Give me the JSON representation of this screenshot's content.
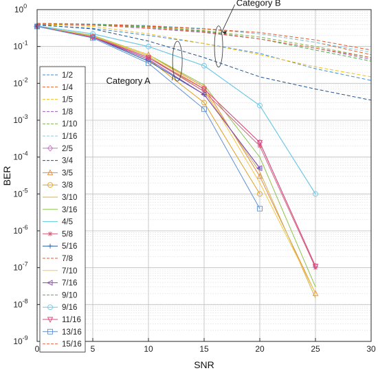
{
  "chart_data": {
    "type": "line",
    "xlabel": "SNR",
    "ylabel": "BER",
    "xlim": [
      0,
      30
    ],
    "ylim": [
      1e-09,
      1
    ],
    "yscale": "log",
    "grid": true,
    "legend_position": "left",
    "x_ticks": [
      "0",
      "5",
      "10",
      "15",
      "20",
      "25",
      "30"
    ],
    "y_tick_base": "10",
    "y_tick_exponents": [
      "-9",
      "-8",
      "-7",
      "-6",
      "-5",
      "-4",
      "-3",
      "-2",
      "-1",
      "0"
    ],
    "annotations": [
      {
        "text": "Category A",
        "x": 12.5,
        "y": 0.012
      },
      {
        "text": "Category B",
        "x": 18.5,
        "y": 0.32
      }
    ],
    "series": [
      {
        "name": "1/2",
        "color": "#3b8ed8",
        "dash": true,
        "marker": "none",
        "x": [
          0,
          5,
          10,
          15,
          20,
          25,
          30
        ],
        "y": [
          0.38,
          0.31,
          0.2,
          0.12,
          0.065,
          0.025,
          0.012
        ]
      },
      {
        "name": "1/4",
        "color": "#e06020",
        "dash": true,
        "marker": "none",
        "x": [
          0,
          5,
          10,
          15,
          20,
          25,
          30
        ],
        "y": [
          0.42,
          0.4,
          0.35,
          0.3,
          0.22,
          0.13,
          0.06
        ]
      },
      {
        "name": "1/5",
        "color": "#f0c020",
        "dash": true,
        "marker": "none",
        "x": [
          0,
          5,
          10,
          15,
          20,
          25,
          30
        ],
        "y": [
          0.4,
          0.35,
          0.22,
          0.12,
          0.06,
          0.028,
          0.015
        ]
      },
      {
        "name": "1/8",
        "color": "#9b59b6",
        "dash": true,
        "marker": "none",
        "x": [
          0,
          5,
          10,
          15,
          20,
          25,
          30
        ],
        "y": [
          0.41,
          0.38,
          0.31,
          0.24,
          0.16,
          0.09,
          0.045
        ]
      },
      {
        "name": "1/10",
        "color": "#7cb342",
        "dash": true,
        "marker": "none",
        "x": [
          0,
          5,
          10,
          15,
          20,
          25,
          30
        ],
        "y": [
          0.42,
          0.39,
          0.34,
          0.27,
          0.18,
          0.1,
          0.05
        ]
      },
      {
        "name": "1/16",
        "color": "#7fd0e8",
        "dash": true,
        "marker": "none",
        "x": [
          0,
          5,
          10,
          15,
          20,
          25,
          30
        ],
        "y": [
          0.43,
          0.41,
          0.37,
          0.31,
          0.22,
          0.13,
          0.07
        ]
      },
      {
        "name": "2/5",
        "color": "#c774c7",
        "dash": false,
        "marker": "diamond",
        "x": [
          0,
          5,
          10,
          15,
          20,
          25
        ],
        "y": [
          0.35,
          0.18,
          0.05,
          0.007,
          0.00025,
          1.1e-07
        ]
      },
      {
        "name": "3/4",
        "color": "#1a4e8c",
        "dash": true,
        "marker": "none",
        "x": [
          0,
          5,
          10,
          15,
          20,
          25,
          30
        ],
        "y": [
          0.39,
          0.3,
          0.14,
          0.05,
          0.015,
          0.007,
          0.0035
        ]
      },
      {
        "name": "3/5",
        "color": "#e8883a",
        "dash": false,
        "marker": "triangle",
        "x": [
          0,
          5,
          10,
          15,
          20,
          25
        ],
        "y": [
          0.35,
          0.19,
          0.06,
          0.008,
          3e-05,
          2e-08
        ]
      },
      {
        "name": "3/8",
        "color": "#e0a020",
        "dash": false,
        "marker": "circle",
        "x": [
          0,
          5,
          10,
          15,
          20
        ],
        "y": [
          0.35,
          0.18,
          0.045,
          0.003,
          1e-05
        ]
      },
      {
        "name": "3/10",
        "color": "#c9b458",
        "dash": false,
        "marker": "none",
        "x": [
          0,
          5,
          10,
          15,
          20,
          25
        ],
        "y": [
          0.35,
          0.19,
          0.055,
          0.006,
          4e-05,
          1.5e-08
        ]
      },
      {
        "name": "3/16",
        "color": "#8bc34a",
        "dash": false,
        "marker": "none",
        "x": [
          0,
          5,
          10,
          15,
          20,
          25
        ],
        "y": [
          0.35,
          0.2,
          0.06,
          0.009,
          0.0001,
          3e-08
        ]
      },
      {
        "name": "4/5",
        "color": "#5ac8d8",
        "dash": false,
        "marker": "none",
        "x": [
          0,
          5,
          10,
          15,
          20,
          25
        ],
        "y": [
          0.36,
          0.22,
          0.1,
          0.03,
          0.0025,
          1e-05
        ]
      },
      {
        "name": "5/8",
        "color": "#d0607a",
        "dash": false,
        "marker": "star",
        "x": [
          0,
          5,
          10,
          15,
          20,
          25
        ],
        "y": [
          0.35,
          0.19,
          0.05,
          0.006,
          0.0002,
          1e-07
        ]
      },
      {
        "name": "5/16",
        "color": "#1f5fb0",
        "dash": false,
        "marker": "plus",
        "x": [
          0,
          5,
          10,
          15,
          20
        ],
        "y": [
          0.35,
          0.18,
          0.04,
          0.005,
          5e-05
        ]
      },
      {
        "name": "7/8",
        "color": "#e05a2a",
        "dash": true,
        "marker": "none",
        "x": [
          0,
          5,
          10,
          15,
          20,
          25,
          30
        ],
        "y": [
          0.42,
          0.4,
          0.36,
          0.3,
          0.24,
          0.15,
          0.08
        ]
      },
      {
        "name": "7/10",
        "color": "#f5c842",
        "dash": false,
        "marker": "none",
        "x": [
          0,
          5,
          10,
          15,
          20,
          25
        ],
        "y": [
          0.35,
          0.19,
          0.06,
          0.007,
          2e-05,
          2e-08
        ]
      },
      {
        "name": "7/16",
        "color": "#8e44ad",
        "dash": false,
        "marker": "tri-left",
        "x": [
          0,
          5,
          10,
          15,
          20
        ],
        "y": [
          0.35,
          0.18,
          0.045,
          0.005,
          5e-05
        ]
      },
      {
        "name": "9/10",
        "color": "#4caf50",
        "dash": true,
        "marker": "none",
        "x": [
          0,
          5,
          10,
          15,
          20,
          25,
          30
        ],
        "y": [
          0.41,
          0.39,
          0.34,
          0.26,
          0.16,
          0.08,
          0.04
        ]
      },
      {
        "name": "9/16",
        "color": "#6ec6e6",
        "dash": false,
        "marker": "circle",
        "x": [
          0,
          5,
          10,
          15,
          20,
          25
        ],
        "y": [
          0.36,
          0.22,
          0.1,
          0.03,
          0.0025,
          1e-05
        ]
      },
      {
        "name": "11/16",
        "color": "#d94a7a",
        "dash": false,
        "marker": "tri-down",
        "x": [
          0,
          5,
          10,
          15,
          20,
          25
        ],
        "y": [
          0.35,
          0.18,
          0.05,
          0.007,
          0.00025,
          1.1e-07
        ]
      },
      {
        "name": "13/16",
        "color": "#5b8fd4",
        "dash": false,
        "marker": "square",
        "x": [
          0,
          5,
          10,
          15,
          20
        ],
        "y": [
          0.35,
          0.17,
          0.035,
          0.002,
          4e-06
        ]
      },
      {
        "name": "15/16",
        "color": "#e8694a",
        "dash": true,
        "marker": "none",
        "x": [
          0,
          5,
          10,
          15,
          20,
          25,
          30
        ],
        "y": [
          0.41,
          0.38,
          0.32,
          0.25,
          0.16,
          0.09,
          0.05
        ]
      }
    ]
  }
}
